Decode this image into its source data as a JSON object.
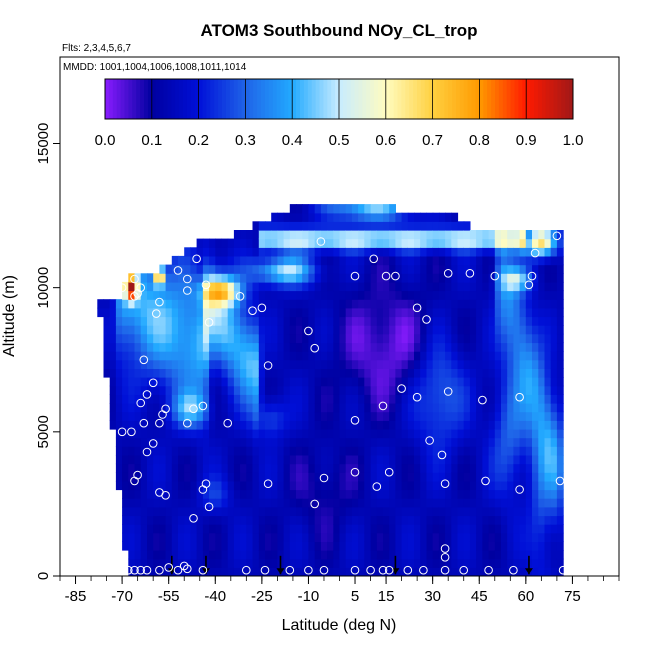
{
  "chart_data": {
    "type": "heatmap",
    "title": "ATOM3 Southbound NOy_CL_trop",
    "flights_label": "Flts: 2,3,4,5,6,7",
    "dates_label": "MMDD: 1001,1004,1006,1008,1011,1014",
    "xlabel": "Latitude (deg N)",
    "ylabel": "Altitude (m)",
    "xlim": [
      -90,
      90
    ],
    "ylim": [
      0,
      18000
    ],
    "x_ticks_major": [
      -85,
      -70,
      -55,
      -40,
      -25,
      -10,
      5,
      15,
      30,
      45,
      60,
      75
    ],
    "x_ticks_minor_step": 5,
    "y_ticks": [
      0,
      5000,
      10000,
      15000
    ],
    "colorbar": {
      "range": [
        0,
        1
      ],
      "ticks": [
        "0.0",
        "0.1",
        "0.2",
        "0.3",
        "0.4",
        "0.5",
        "0.6",
        "0.7",
        "0.8",
        "0.9",
        "1.0"
      ],
      "colors": [
        "#8a1cff",
        "#0000a0",
        "#0010d8",
        "#1f63e8",
        "#22aaff",
        "#c8ecff",
        "#fffcc0",
        "#ffd040",
        "#ff9a00",
        "#ff1a00",
        "#a01818"
      ]
    },
    "grid": false,
    "arrow_latitudes": [
      -54,
      -43,
      -19,
      18,
      61
    ],
    "samples": [
      [
        -68,
        200
      ],
      [
        -66,
        200
      ],
      [
        -64,
        200
      ],
      [
        -62,
        200
      ],
      [
        -58,
        200
      ],
      [
        -52,
        200
      ],
      [
        -44,
        200
      ],
      [
        -30,
        200
      ],
      [
        -24,
        200
      ],
      [
        -16,
        200
      ],
      [
        -10,
        200
      ],
      [
        -5,
        200
      ],
      [
        5,
        200
      ],
      [
        10,
        200
      ],
      [
        14,
        200
      ],
      [
        16,
        200
      ],
      [
        22,
        200
      ],
      [
        27,
        200
      ],
      [
        34,
        200
      ],
      [
        40,
        200
      ],
      [
        48,
        200
      ],
      [
        56,
        200
      ],
      [
        72,
        200
      ],
      [
        -55,
        300
      ],
      [
        -50,
        350
      ],
      [
        -49,
        250
      ],
      [
        34,
        650
      ],
      [
        34,
        950
      ],
      [
        -47,
        2000
      ],
      [
        -42,
        2400
      ],
      [
        -8,
        2500
      ],
      [
        -56,
        2800
      ],
      [
        -58,
        2900
      ],
      [
        -44,
        3000
      ],
      [
        -43,
        3200
      ],
      [
        -23,
        3200
      ],
      [
        -5,
        3400
      ],
      [
        12,
        3100
      ],
      [
        16,
        3600
      ],
      [
        5,
        3600
      ],
      [
        34,
        3200
      ],
      [
        47,
        3300
      ],
      [
        58,
        3000
      ],
      [
        71,
        3300
      ],
      [
        -66,
        3300
      ],
      [
        -65,
        3500
      ],
      [
        -62,
        4300
      ],
      [
        -60,
        4600
      ],
      [
        -70,
        5000
      ],
      [
        -67,
        5000
      ],
      [
        -63,
        5300
      ],
      [
        -58,
        5300
      ],
      [
        -49,
        5300
      ],
      [
        -47,
        5800
      ],
      [
        -44,
        5900
      ],
      [
        -36,
        5300
      ],
      [
        -57,
        5600
      ],
      [
        -56,
        5800
      ],
      [
        -64,
        6000
      ],
      [
        -62,
        6300
      ],
      [
        -60,
        6700
      ],
      [
        -63,
        7500
      ],
      [
        5,
        5400
      ],
      [
        14,
        5900
      ],
      [
        20,
        6500
      ],
      [
        25,
        6200
      ],
      [
        29,
        4700
      ],
      [
        33,
        4200
      ],
      [
        35,
        6400
      ],
      [
        46,
        6100
      ],
      [
        58,
        6200
      ],
      [
        -8,
        7900
      ],
      [
        -23,
        7300
      ],
      [
        -10,
        8500
      ],
      [
        -59,
        9100
      ],
      [
        -58,
        9500
      ],
      [
        -66,
        9700
      ],
      [
        -64,
        10000
      ],
      [
        -66,
        10300
      ],
      [
        -70,
        10000
      ],
      [
        -65,
        9800
      ],
      [
        -49,
        9900
      ],
      [
        -49,
        10300
      ],
      [
        -43,
        10100
      ],
      [
        -32,
        9700
      ],
      [
        -28,
        9200
      ],
      [
        -25,
        9300
      ],
      [
        -42,
        8800
      ],
      [
        5,
        10400
      ],
      [
        11,
        11000
      ],
      [
        -6,
        11600
      ],
      [
        15,
        10400
      ],
      [
        18,
        10400
      ],
      [
        25,
        9300
      ],
      [
        28,
        8900
      ],
      [
        35,
        10500
      ],
      [
        42,
        10500
      ],
      [
        50,
        10400
      ],
      [
        61,
        10100
      ],
      [
        62,
        10400
      ],
      [
        63,
        11200
      ],
      [
        70,
        11800
      ],
      [
        -46,
        11000
      ],
      [
        -52,
        10600
      ]
    ]
  }
}
